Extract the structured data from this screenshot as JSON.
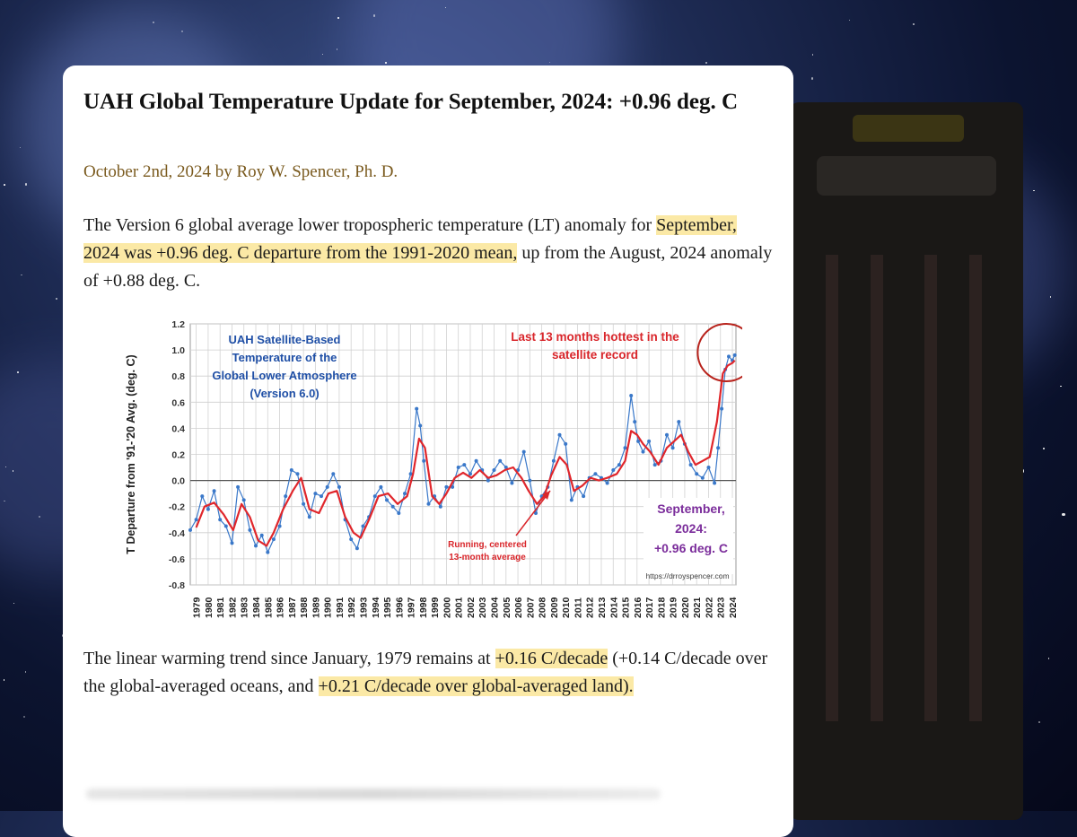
{
  "article": {
    "title": "UAH Global Temperature Update for September, 2024: +0.96 deg. C",
    "byline": "October 2nd, 2024 by Roy W. Spencer, Ph. D.",
    "para1_a": "The Version 6 global average lower tropospheric temperature (LT) anomaly for ",
    "para1_hl": "September, 2024 was +0.96 deg. C departure from the 1991-2020 mean,",
    "para1_b": " up from the August, 2024 anomaly of +0.88 deg. C.",
    "para2_a": "The linear warming trend since January, 1979 remains at ",
    "para2_hl1": "+0.16 C/decade",
    "para2_b": " (+0.14 C/decade over the global-averaged oceans, and ",
    "para2_hl2": "+0.21 C/decade over global-averaged land).",
    "para2_c": ""
  },
  "colors": {
    "highlight": "#fbe9a6",
    "monthly": "#3a78c9",
    "running": "#e0262b",
    "circle": "#b8231c",
    "title_blue": "#1f4fa6",
    "annot_red": "#d9262b",
    "purple": "#7b2d9b"
  },
  "chart_data": {
    "type": "line",
    "title": "UAH Satellite-Based Temperature of the Global Lower Atmosphere (Version 6.0)",
    "title_lines": [
      "UAH Satellite-Based",
      "Temperature of the",
      "Global Lower Atmosphere",
      "(Version 6.0)"
    ],
    "ylabel": "T Departure from '91-'20 Avg. (deg. C)",
    "ylim": [
      -0.8,
      1.2
    ],
    "yticks": [
      "1.2",
      "1.0",
      "0.8",
      "0.6",
      "0.4",
      "0.2",
      "0.0",
      "-0.2",
      "-0.4",
      "-0.6",
      "-0.8"
    ],
    "xticks": [
      "1979",
      "1980",
      "1981",
      "1982",
      "1983",
      "1984",
      "1985",
      "1986",
      "1987",
      "1988",
      "1989",
      "1990",
      "1991",
      "1992",
      "1993",
      "1994",
      "1995",
      "1996",
      "1997",
      "1998",
      "1999",
      "2000",
      "2001",
      "2002",
      "2003",
      "2004",
      "2005",
      "2006",
      "2007",
      "2008",
      "2009",
      "2010",
      "2011",
      "2012",
      "2013",
      "2014",
      "2015",
      "2016",
      "2017",
      "2018",
      "2019",
      "2020",
      "2021",
      "2022",
      "2023",
      "2024"
    ],
    "grid": true,
    "annotations": {
      "top": [
        "Last 13 months hottest in the",
        "satellite record"
      ],
      "running": [
        "Running, centered",
        "13-month average"
      ],
      "latest": [
        "September,",
        "2024:",
        "+0.96 deg. C"
      ],
      "url": "https://drroyspencer.com"
    },
    "series": [
      {
        "name": "Monthly",
        "x": [
          1979.0,
          1979.5,
          1980.0,
          1980.5,
          1981.0,
          1981.5,
          1982.0,
          1982.5,
          1983.0,
          1983.5,
          1984.0,
          1984.5,
          1985.0,
          1985.5,
          1986.0,
          1986.5,
          1987.0,
          1987.5,
          1988.0,
          1988.5,
          1989.0,
          1989.5,
          1990.0,
          1990.5,
          1991.0,
          1991.5,
          1992.0,
          1992.5,
          1993.0,
          1993.5,
          1994.0,
          1994.5,
          1995.0,
          1995.5,
          1996.0,
          1996.5,
          1997.0,
          1997.5,
          1998.0,
          1998.3,
          1998.6,
          1999.0,
          1999.5,
          2000.0,
          2000.5,
          2001.0,
          2001.5,
          2002.0,
          2002.5,
          2003.0,
          2003.5,
          2004.0,
          2004.5,
          2005.0,
          2005.5,
          2006.0,
          2006.5,
          2007.0,
          2007.5,
          2008.0,
          2008.5,
          2009.0,
          2009.5,
          2010.0,
          2010.5,
          2011.0,
          2011.5,
          2012.0,
          2012.5,
          2013.0,
          2013.5,
          2014.0,
          2014.5,
          2015.0,
          2015.5,
          2016.0,
          2016.3,
          2016.6,
          2017.0,
          2017.5,
          2018.0,
          2018.5,
          2019.0,
          2019.5,
          2020.0,
          2020.5,
          2021.0,
          2021.5,
          2022.0,
          2022.5,
          2023.0,
          2023.3,
          2023.6,
          2023.9,
          2024.2,
          2024.5,
          2024.7
        ],
        "values": [
          -0.38,
          -0.3,
          -0.12,
          -0.22,
          -0.08,
          -0.3,
          -0.35,
          -0.48,
          -0.05,
          -0.15,
          -0.38,
          -0.5,
          -0.42,
          -0.55,
          -0.45,
          -0.35,
          -0.12,
          0.08,
          0.05,
          -0.18,
          -0.28,
          -0.1,
          -0.12,
          -0.05,
          0.05,
          -0.05,
          -0.3,
          -0.45,
          -0.52,
          -0.35,
          -0.28,
          -0.12,
          -0.05,
          -0.15,
          -0.2,
          -0.25,
          -0.1,
          0.05,
          0.55,
          0.42,
          0.15,
          -0.18,
          -0.12,
          -0.2,
          -0.05,
          -0.05,
          0.1,
          0.12,
          0.05,
          0.15,
          0.08,
          0.0,
          0.08,
          0.15,
          0.1,
          -0.02,
          0.08,
          0.22,
          0.0,
          -0.25,
          -0.12,
          -0.05,
          0.15,
          0.35,
          0.28,
          -0.15,
          -0.05,
          -0.12,
          0.02,
          0.05,
          0.02,
          -0.02,
          0.08,
          0.12,
          0.25,
          0.65,
          0.45,
          0.3,
          0.22,
          0.3,
          0.12,
          0.15,
          0.35,
          0.25,
          0.45,
          0.28,
          0.12,
          0.05,
          0.02,
          0.1,
          -0.02,
          0.25,
          0.55,
          0.85,
          0.95,
          0.92,
          0.96
        ]
      },
      {
        "name": "Running, centered 13-month average",
        "x": [
          1979.5,
          1980.2,
          1981.0,
          1981.8,
          1982.6,
          1983.3,
          1984.0,
          1984.7,
          1985.4,
          1986.0,
          1986.8,
          1987.6,
          1988.3,
          1989.0,
          1989.8,
          1990.6,
          1991.3,
          1992.0,
          1992.7,
          1993.3,
          1994.0,
          1994.8,
          1995.6,
          1996.4,
          1997.2,
          1997.7,
          1998.2,
          1998.7,
          1999.3,
          1999.9,
          2000.5,
          2001.2,
          2001.9,
          2002.6,
          2003.3,
          2004.0,
          2004.7,
          2005.4,
          2006.1,
          2006.8,
          2007.4,
          2008.1,
          2008.7,
          2009.3,
          2010.0,
          2010.6,
          2011.2,
          2011.9,
          2012.6,
          2013.3,
          2014.0,
          2014.8,
          2015.5,
          2016.0,
          2016.5,
          2017.0,
          2017.6,
          2018.3,
          2019.0,
          2019.6,
          2020.2,
          2020.8,
          2021.4,
          2022.0,
          2022.6,
          2023.2,
          2023.7,
          2024.1,
          2024.5,
          2024.7
        ],
        "values": [
          -0.36,
          -0.2,
          -0.17,
          -0.26,
          -0.38,
          -0.18,
          -0.28,
          -0.46,
          -0.5,
          -0.4,
          -0.22,
          -0.08,
          0.02,
          -0.22,
          -0.25,
          -0.1,
          -0.08,
          -0.28,
          -0.4,
          -0.44,
          -0.3,
          -0.12,
          -0.1,
          -0.18,
          -0.12,
          0.05,
          0.32,
          0.25,
          -0.12,
          -0.18,
          -0.1,
          0.02,
          0.06,
          0.02,
          0.08,
          0.02,
          0.04,
          0.08,
          0.1,
          0.02,
          -0.08,
          -0.18,
          -0.12,
          0.04,
          0.18,
          0.12,
          -0.08,
          -0.04,
          0.02,
          0.0,
          0.02,
          0.05,
          0.15,
          0.38,
          0.35,
          0.28,
          0.22,
          0.12,
          0.25,
          0.3,
          0.35,
          0.22,
          0.12,
          0.15,
          0.18,
          0.45,
          0.82,
          0.88,
          0.9,
          0.92
        ]
      }
    ]
  }
}
